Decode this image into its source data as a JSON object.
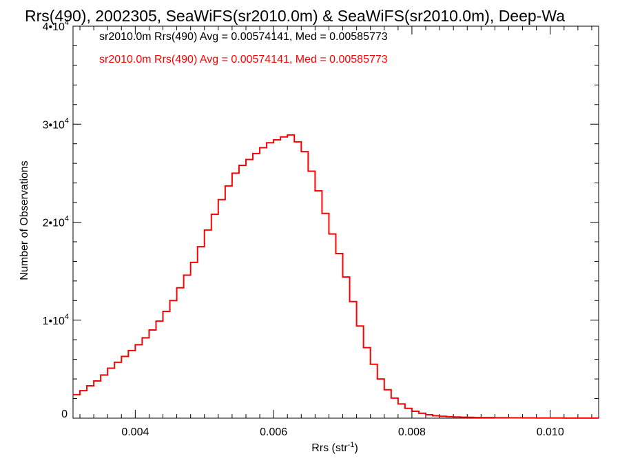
{
  "chart_data": {
    "type": "line",
    "title": "Rrs(490), 2002305, SeaWiFS(sr2010.0m) & SeaWiFS(sr2010.0m), Deep-Wa",
    "xlabel": "Rrs (str⁻¹)",
    "ylabel": "Number of Observations",
    "xlim": [
      0.0031,
      0.0107
    ],
    "ylim": [
      0,
      40000
    ],
    "x_ticks": [
      {
        "value": 0.004,
        "label": "0.004"
      },
      {
        "value": 0.006,
        "label": "0.006"
      },
      {
        "value": 0.008,
        "label": "0.008"
      },
      {
        "value": 0.01,
        "label": "0.010"
      }
    ],
    "y_ticks": [
      {
        "value": 0,
        "mant": "0",
        "exp": ""
      },
      {
        "value": 10000,
        "mant": "1•10",
        "exp": "4"
      },
      {
        "value": 20000,
        "mant": "2•10",
        "exp": "4"
      },
      {
        "value": 30000,
        "mant": "3•10",
        "exp": "4"
      },
      {
        "value": 40000,
        "mant": "4•10",
        "exp": "4"
      }
    ],
    "annotations": [
      {
        "text": "sr2010.0m Rrs(490) Avg = 0.00574141, Med = 0.00585773",
        "color": "#000000"
      },
      {
        "text": "sr2010.0m Rrs(490) Avg = 0.00574141, Med = 0.00585773",
        "color": "#ff0000"
      }
    ],
    "series": [
      {
        "color": "#ff0000",
        "style": "step",
        "x": [
          0.0031,
          0.0032,
          0.0033,
          0.0034,
          0.0035,
          0.0036,
          0.0037,
          0.0038,
          0.0039,
          0.004,
          0.0041,
          0.0042,
          0.0043,
          0.0044,
          0.0045,
          0.0046,
          0.0047,
          0.0048,
          0.0049,
          0.005,
          0.0051,
          0.0052,
          0.0053,
          0.0054,
          0.0055,
          0.0056,
          0.0057,
          0.0058,
          0.0059,
          0.006,
          0.0061,
          0.0062,
          0.0063,
          0.0064,
          0.0065,
          0.0066,
          0.0067,
          0.0068,
          0.0069,
          0.007,
          0.0071,
          0.0072,
          0.0073,
          0.0074,
          0.0075,
          0.0076,
          0.0077,
          0.0078,
          0.0079,
          0.008,
          0.0081,
          0.0082,
          0.0083,
          0.0084,
          0.0085,
          0.0086,
          0.0087,
          0.0088,
          0.0089,
          0.009,
          0.0092,
          0.0094,
          0.0096,
          0.0098,
          0.01,
          0.0102,
          0.0104,
          0.0107
        ],
        "y": [
          2400,
          2800,
          3300,
          3800,
          4400,
          5100,
          5700,
          6300,
          6900,
          7500,
          8200,
          9000,
          9900,
          10900,
          12000,
          13300,
          14600,
          15900,
          17500,
          19200,
          20800,
          22300,
          23700,
          25000,
          25800,
          26400,
          27000,
          27600,
          28100,
          28400,
          28700,
          28900,
          28200,
          27200,
          25200,
          23200,
          20900,
          18800,
          16800,
          14400,
          11900,
          9400,
          7200,
          5500,
          4000,
          2900,
          2050,
          1450,
          1000,
          700,
          500,
          350,
          250,
          190,
          150,
          120,
          100,
          85,
          70,
          60,
          45,
          35,
          25,
          20,
          15,
          10,
          8,
          5
        ]
      }
    ]
  }
}
